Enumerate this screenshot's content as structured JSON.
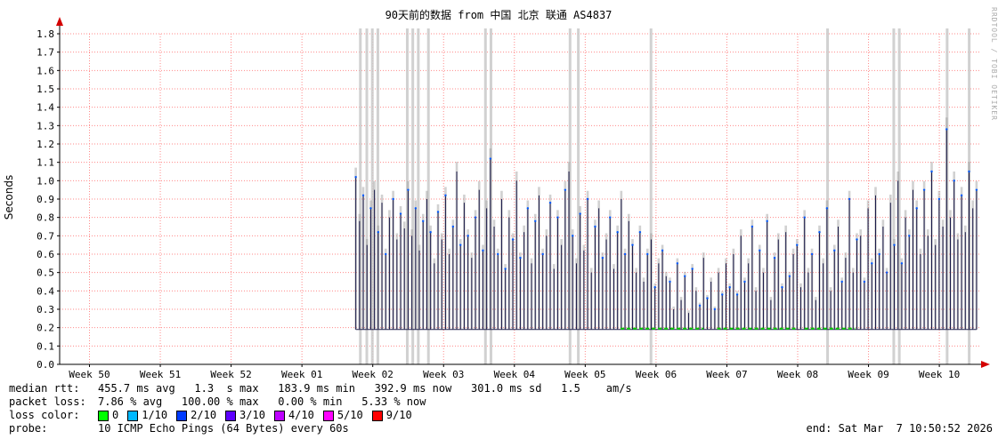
{
  "watermark": "RRDTOOL / TOBI OETIKER",
  "chart_data": {
    "type": "line",
    "title": "90天前的数据 from 中国 北京 联通 AS4837",
    "ylabel": "Seconds",
    "ylim": [
      0.0,
      1.85
    ],
    "ytick_step": 0.1,
    "yticks": [
      "0.0",
      "0.1",
      "0.2",
      "0.3",
      "0.4",
      "0.5",
      "0.6",
      "0.7",
      "0.8",
      "0.9",
      "1.0",
      "1.1",
      "1.2",
      "1.3",
      "1.4",
      "1.5",
      "1.6",
      "1.7",
      "1.8"
    ],
    "x_categories": [
      "Week 50",
      "Week 51",
      "Week 52",
      "Week 01",
      "Week 02",
      "Week 03",
      "Week 04",
      "Week 05",
      "Week 06",
      "Week 07",
      "Week 08",
      "Week 09",
      "Week 10"
    ],
    "grid": true,
    "legend_position": "bottom",
    "baseline_value": 0.19,
    "data_start_frac": 0.322,
    "data_end_frac": 0.997,
    "median_spike_heights": [
      1.02,
      0.78,
      0.92,
      0.65,
      0.85,
      0.95,
      0.72,
      0.88,
      0.6,
      0.8,
      0.9,
      0.68,
      0.82,
      0.74,
      0.95,
      0.7,
      0.85,
      0.62,
      0.78,
      0.9,
      0.72,
      0.55,
      0.83,
      0.68,
      0.92,
      0.6,
      0.75,
      1.05,
      0.65,
      0.88,
      0.7,
      0.58,
      0.8,
      0.95,
      0.62,
      0.85,
      1.12,
      0.75,
      0.6,
      0.9,
      0.52,
      0.8,
      0.68,
      1.0,
      0.58,
      0.72,
      0.85,
      0.55,
      0.78,
      0.92,
      0.6,
      0.7,
      0.88,
      0.52,
      0.8,
      0.65,
      0.95,
      1.05,
      0.7,
      0.55,
      0.82,
      0.62,
      0.9,
      0.5,
      0.75,
      0.85,
      0.58,
      0.68,
      0.8,
      0.52,
      0.72,
      0.9,
      0.6,
      0.78,
      0.65,
      0.5,
      0.72,
      0.45,
      0.6,
      0.68,
      0.42,
      0.55,
      0.62,
      0.48,
      0.45,
      0.3,
      0.55,
      0.35,
      0.48,
      0.28,
      0.52,
      0.4,
      0.32,
      0.58,
      0.36,
      0.45,
      0.3,
      0.5,
      0.38,
      0.55,
      0.42,
      0.6,
      0.38,
      0.7,
      0.45,
      0.55,
      0.75,
      0.4,
      0.62,
      0.5,
      0.78,
      0.35,
      0.58,
      0.68,
      0.42,
      0.72,
      0.48,
      0.6,
      0.65,
      0.42,
      0.8,
      0.5,
      0.6,
      0.35,
      0.72,
      0.55,
      0.85,
      0.4,
      0.62,
      0.75,
      0.45,
      0.58,
      0.9,
      0.5,
      0.68,
      0.7,
      0.45,
      0.85,
      0.55,
      0.92,
      0.6,
      0.75,
      0.5,
      0.88,
      0.65,
      1.0,
      0.55,
      0.8,
      0.7,
      0.95,
      0.85,
      0.6,
      0.95,
      0.7,
      1.05,
      0.65,
      0.9,
      0.75,
      1.28,
      0.8,
      1.0,
      0.68,
      0.92,
      0.72,
      1.05,
      0.85,
      0.95
    ],
    "loss_bar_fracs": [
      0.327,
      0.334,
      0.34,
      0.346,
      0.378,
      0.384,
      0.39,
      0.401,
      0.463,
      0.469,
      0.555,
      0.564,
      0.643,
      0.835,
      0.907,
      0.913,
      0.965,
      0.989
    ],
    "green_baseline_ranges": [
      [
        0.61,
        0.7
      ],
      [
        0.715,
        0.8
      ],
      [
        0.81,
        0.865
      ]
    ],
    "colors": {
      "grid": "#ff8a8a",
      "arrow": "#d40000",
      "loss_bar": "#c9c9c9",
      "median": "#181848",
      "smoke": "#999999",
      "dot": "#0059ff",
      "loss0": "#00d000"
    }
  },
  "stats": {
    "rows": [
      {
        "label": "median rtt:",
        "value": "455.7 ms avg   1.3  s max   183.9 ms min   392.9 ms now   301.0 ms sd   1.5    am/s"
      },
      {
        "label": "packet loss:",
        "value": "7.86 % avg   100.00 % max   0.00 % min   5.33 % now"
      }
    ],
    "probe_label": "probe:",
    "probe_value": "10 ICMP Echo Pings (64 Bytes) every 60s",
    "end_text": "end: Sat Mar  7 10:50:52 2026"
  },
  "legend": {
    "label": "loss color:",
    "items": [
      {
        "label": "0",
        "color": "#00ff00"
      },
      {
        "label": "1/10",
        "color": "#00b8ff"
      },
      {
        "label": "2/10",
        "color": "#003bff"
      },
      {
        "label": "3/10",
        "color": "#5e00ff"
      },
      {
        "label": "4/10",
        "color": "#bd00ff"
      },
      {
        "label": "5/10",
        "color": "#ff00ff"
      },
      {
        "label": "9/10",
        "color": "#ff0000"
      }
    ]
  }
}
